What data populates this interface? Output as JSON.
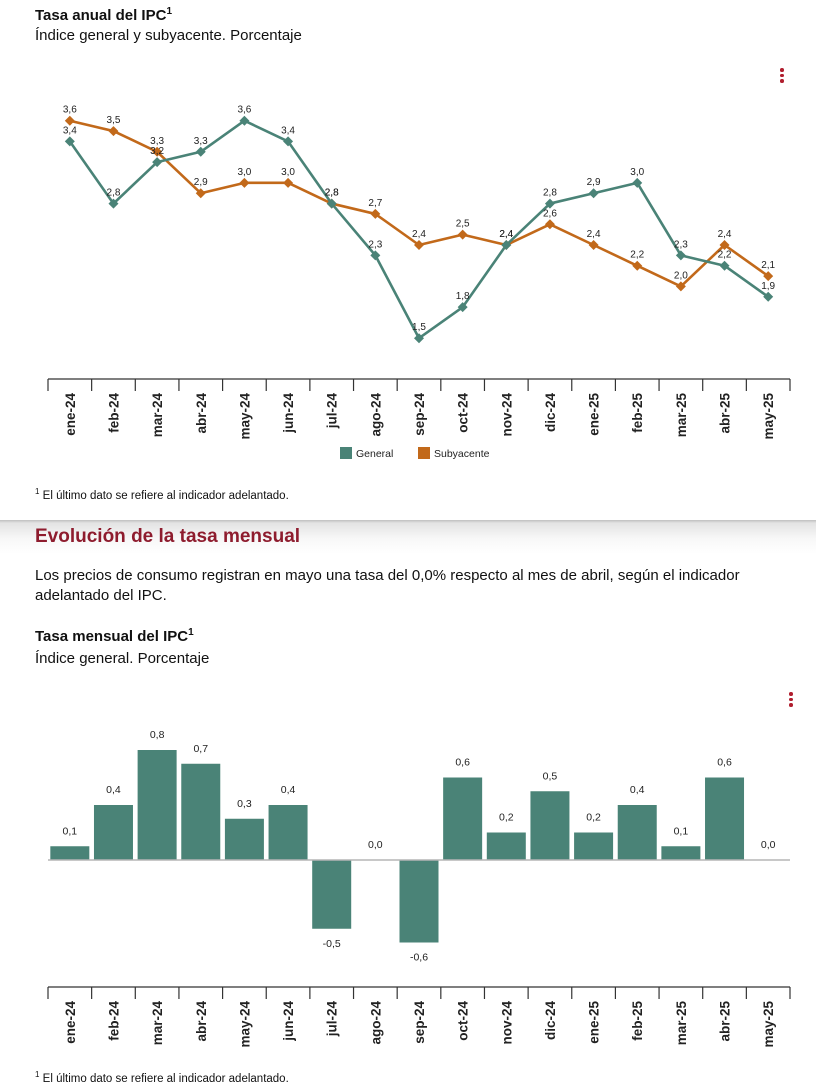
{
  "annual": {
    "title": "Tasa anual del IPC",
    "title_sup": "1",
    "subtitle": "Índice general y subyacente. Porcentaje",
    "menu_icon": "vertical-ellipsis-icon",
    "footnote_sup": "1",
    "footnote": "El último dato se refiere al indicador adelantado."
  },
  "section": {
    "heading": "Evolución de la tasa mensual",
    "paragraph": "Los precios de consumo registran en mayo una tasa del 0,0% respecto al mes de abril, según el indicador adelantado del IPC."
  },
  "monthly": {
    "title": "Tasa mensual del IPC",
    "title_sup": "1",
    "subtitle": "Índice general. Porcentaje",
    "menu_icon": "vertical-ellipsis-icon",
    "footnote_sup": "1",
    "footnote": "El último dato se refiere al indicador adelantado."
  },
  "colors": {
    "general": "#4a8377",
    "subyacente": "#c2691a",
    "heading": "#8e1c2e",
    "menu": "#b01e2e"
  },
  "chart_data": [
    {
      "type": "line",
      "categories": [
        "ene-24",
        "feb-24",
        "mar-24",
        "abr-24",
        "may-24",
        "jun-24",
        "jul-24",
        "ago-24",
        "sep-24",
        "oct-24",
        "nov-24",
        "dic-24",
        "ene-25",
        "feb-25",
        "mar-25",
        "abr-25",
        "may-25"
      ],
      "series": [
        {
          "name": "General",
          "color": "#4a8377",
          "values": [
            3.4,
            2.8,
            3.2,
            3.3,
            3.6,
            3.4,
            2.8,
            2.3,
            1.5,
            1.8,
            2.4,
            2.8,
            2.9,
            3.0,
            2.3,
            2.2,
            1.9
          ]
        },
        {
          "name": "Subyacente",
          "color": "#c2691a",
          "values": [
            3.6,
            3.5,
            3.3,
            2.9,
            3.0,
            3.0,
            2.8,
            2.7,
            2.4,
            2.5,
            2.4,
            2.6,
            2.4,
            2.2,
            2.0,
            2.4,
            2.1
          ]
        }
      ],
      "ylim": [
        1.0,
        3.8
      ],
      "grid": false,
      "legend": "bottom"
    },
    {
      "type": "bar",
      "categories": [
        "ene-24",
        "feb-24",
        "mar-24",
        "abr-24",
        "may-24",
        "jun-24",
        "jul-24",
        "ago-24",
        "sep-24",
        "oct-24",
        "nov-24",
        "dic-24",
        "ene-25",
        "feb-25",
        "mar-25",
        "abr-25",
        "may-25"
      ],
      "series": [
        {
          "name": "General",
          "color": "#4a8377",
          "values": [
            0.1,
            0.4,
            0.8,
            0.7,
            0.3,
            0.4,
            -0.5,
            0.0,
            -0.6,
            0.6,
            0.2,
            0.5,
            0.2,
            0.4,
            0.1,
            0.6,
            0.0
          ]
        }
      ],
      "ylim": [
        -0.9,
        1.1
      ],
      "grid": false,
      "legend": "none"
    }
  ]
}
